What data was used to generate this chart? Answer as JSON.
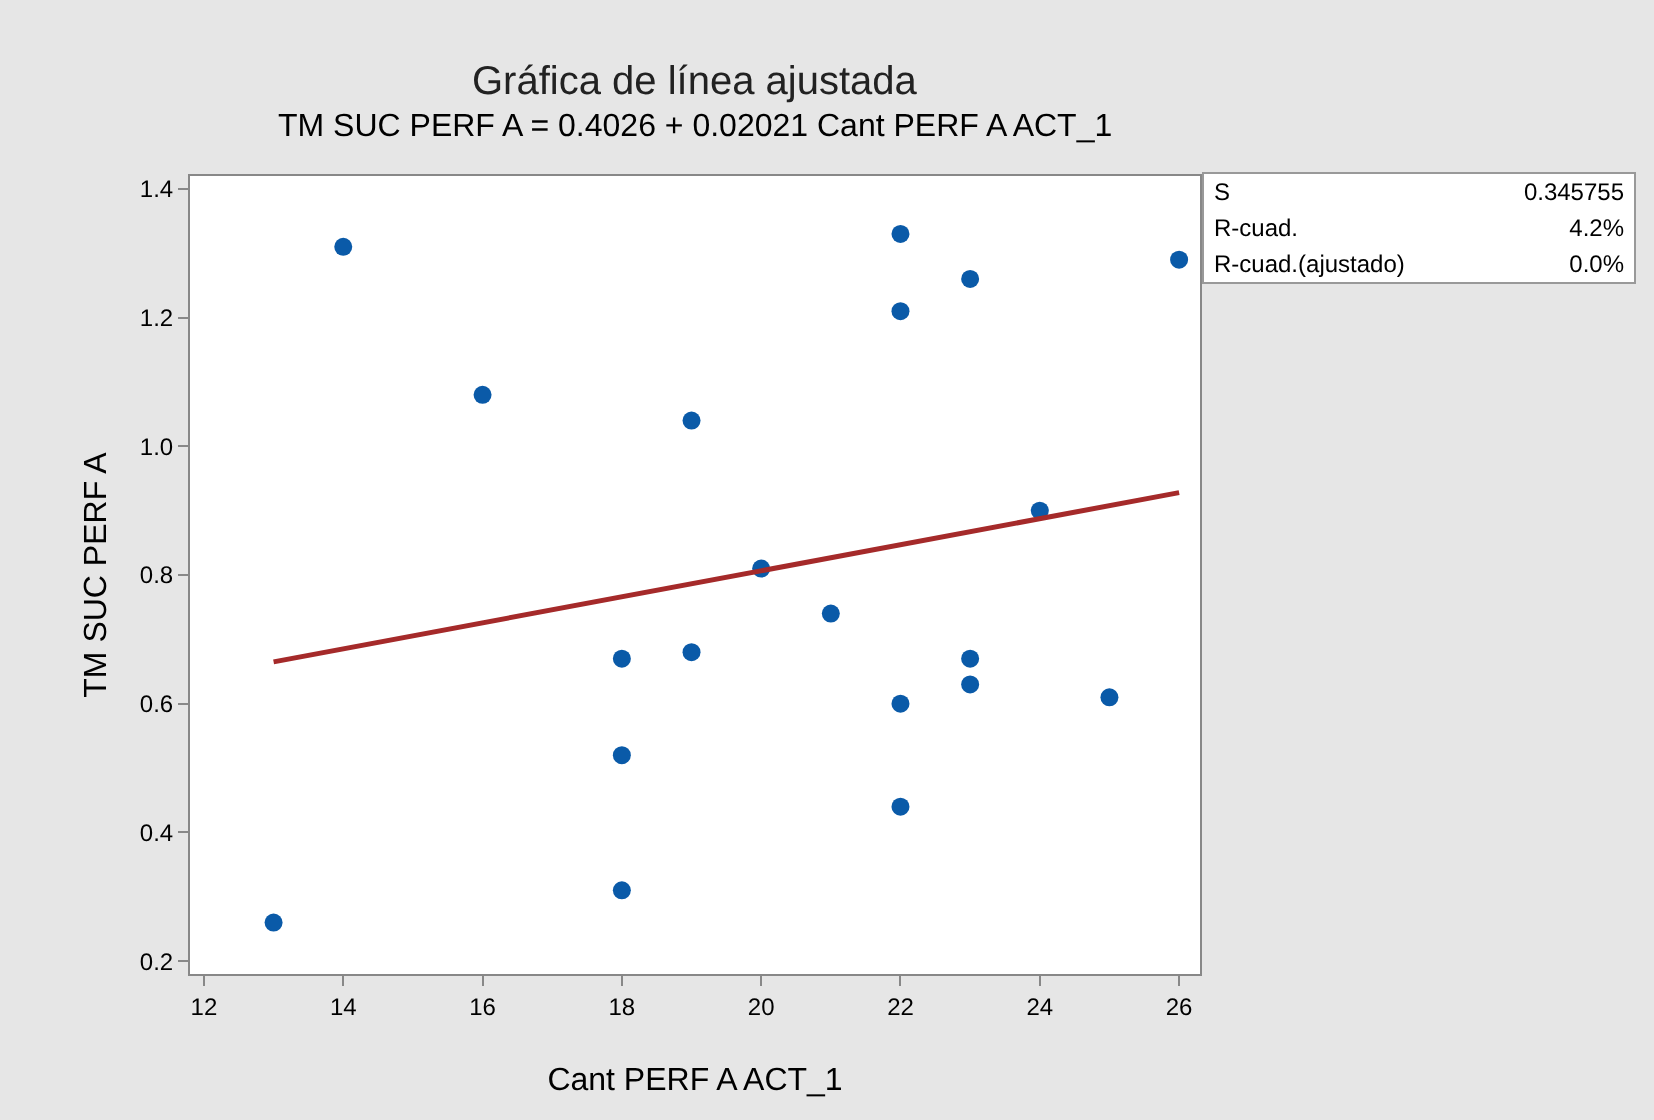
{
  "chart_data": {
    "type": "scatter",
    "title": "Gráfica de línea ajustada",
    "subtitle": "TM SUC PERF A = 0.4026 + 0.02021 Cant PERF A ACT_1",
    "xlabel": "Cant PERF A ACT_1",
    "ylabel": "TM SUC PERF A",
    "x": [
      13,
      14,
      16,
      18,
      18,
      18,
      19,
      19,
      20,
      21,
      22,
      22,
      22,
      22,
      23,
      23,
      23,
      24,
      25,
      26
    ],
    "series": [
      {
        "color": "#0a5aa8",
        "marker": "circle",
        "values": [
          0.26,
          1.31,
          1.08,
          0.67,
          0.52,
          0.31,
          1.04,
          0.68,
          0.81,
          0.74,
          1.33,
          1.21,
          0.6,
          0.44,
          1.26,
          0.67,
          0.63,
          0.9,
          0.61,
          1.29
        ]
      },
      {
        "type": "line",
        "color": "#a52a2a",
        "x": [
          13,
          26
        ],
        "values": [
          0.665,
          0.928
        ],
        "line_style": "solid",
        "marker": "none"
      }
    ],
    "xlim": [
      11.8,
      26.3
    ],
    "xticks": [
      12,
      14,
      16,
      18,
      20,
      22,
      24,
      26
    ],
    "ylim": [
      0.18,
      1.42
    ],
    "yticks": [
      0.2,
      0.4,
      0.6,
      0.8,
      {
        "value": 1,
        "label": "1.0"
      },
      1.2,
      1.4
    ],
    "grid": false,
    "annotations": [
      "S",
      "0.345755",
      "R-cuad.",
      "4.2%",
      "R-cuad.(ajustado)",
      "0.0%"
    ]
  }
}
